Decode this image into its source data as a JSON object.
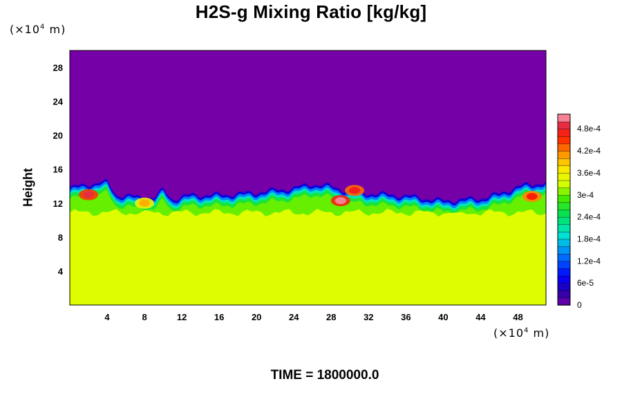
{
  "page": {
    "title": "H2S-g Mixing Ratio [kg/kg]",
    "time_label": "TIME = 1800000.0",
    "y_unit": "(×10",
    "y_unit_exp": "4",
    "y_unit_tail": " m)",
    "x_unit": "(×10",
    "x_unit_exp": "4",
    "x_unit_tail": " m)"
  },
  "chart_data": {
    "type": "heatmap",
    "title": "H2S-g Mixing Ratio [kg/kg]",
    "ylabel": "Height",
    "xlabel": "",
    "x_unit": "×10^4 m",
    "y_unit": "×10^4 m",
    "xlim": [
      0,
      51
    ],
    "ylim": [
      0,
      30
    ],
    "x_ticks": [
      4,
      8,
      12,
      16,
      20,
      24,
      28,
      32,
      36,
      40,
      44,
      48
    ],
    "y_ticks": [
      4,
      8,
      12,
      16,
      20,
      24,
      28
    ],
    "colorbar": {
      "min": 0,
      "max": 0.00052,
      "tick_values": [
        0,
        6e-05,
        0.00012,
        0.00018,
        0.00024,
        0.0003,
        0.00036,
        0.00042,
        0.00048
      ],
      "tick_labels": [
        "0",
        "6e-5",
        "1.2e-4",
        "1.8e-4",
        "2.4e-4",
        "3e-4",
        "3.6e-4",
        "4.2e-4",
        "4.8e-4"
      ]
    },
    "field": {
      "upper_value": 0,
      "lower_value": 0.000335,
      "interface_height_approx": 12.5,
      "interface_profile": [
        [
          0,
          13.8
        ],
        [
          2,
          14.3
        ],
        [
          4,
          14.5
        ],
        [
          5,
          13.0
        ],
        [
          7,
          12.8
        ],
        [
          9,
          12.6
        ],
        [
          10,
          13.6
        ],
        [
          11,
          12.5
        ],
        [
          13,
          13.0
        ],
        [
          16,
          13.0
        ],
        [
          20,
          13.3
        ],
        [
          24,
          13.8
        ],
        [
          26,
          14.3
        ],
        [
          28,
          14.0
        ],
        [
          30,
          13.4
        ],
        [
          32,
          13.2
        ],
        [
          36,
          12.9
        ],
        [
          40,
          12.3
        ],
        [
          44,
          12.6
        ],
        [
          46,
          13.1
        ],
        [
          48,
          14.0
        ],
        [
          51,
          14.5
        ]
      ],
      "high_value_patches": [
        {
          "x": 2,
          "y": 13.0,
          "value": 0.00049
        },
        {
          "x": 29,
          "y": 12.3,
          "value": 0.00051
        },
        {
          "x": 30.5,
          "y": 13.5,
          "value": 0.00047
        },
        {
          "x": 49.5,
          "y": 12.8,
          "value": 0.00046
        },
        {
          "x": 8,
          "y": 12.0,
          "value": 0.0004
        }
      ]
    }
  }
}
